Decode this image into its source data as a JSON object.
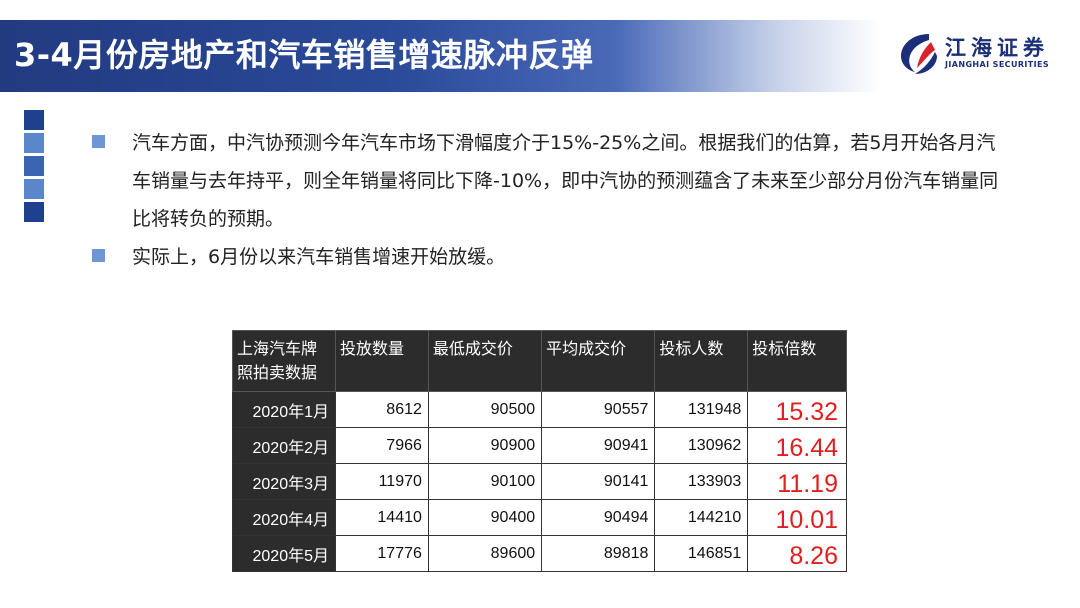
{
  "header": {
    "title": "3-4月份房地产和汽车销售增速脉冲反弹"
  },
  "logo": {
    "name_cn": "江海证券",
    "name_en": "JIANGHAI SECURITIES"
  },
  "bullets": [
    "汽车方面，中汽协预测今年汽车市场下滑幅度介于15%-25%之间。根据我们的估算，若5月开始各月汽车销量与去年持平，则全年销量将同比下降-10%，即中汽协的预测蕴含了未来至少部分月份汽车销量同比将转负的预期。",
    "实际上，6月份以来汽车销售增速开始放缓。"
  ],
  "table": {
    "headers": [
      "上海汽车牌照拍卖数据",
      "投放数量",
      "最低成交价",
      "平均成交价",
      "投标人数",
      "投标倍数"
    ],
    "rows": [
      [
        "2020年1月",
        "8612",
        "90500",
        "90557",
        "131948",
        "15.32"
      ],
      [
        "2020年2月",
        "7966",
        "90900",
        "90941",
        "130962",
        "16.44"
      ],
      [
        "2020年3月",
        "11970",
        "90100",
        "90141",
        "133903",
        "11.19"
      ],
      [
        "2020年4月",
        "14410",
        "90400",
        "90494",
        "144210",
        "10.01"
      ],
      [
        "2020年5月",
        "17776",
        "89600",
        "89818",
        "146851",
        "8.26"
      ]
    ]
  },
  "colors": {
    "title_bar": "#223a80",
    "bullet_marker": "#6d97d4",
    "table_header": "#2c2c2c",
    "ratio_text": "#e02020"
  }
}
